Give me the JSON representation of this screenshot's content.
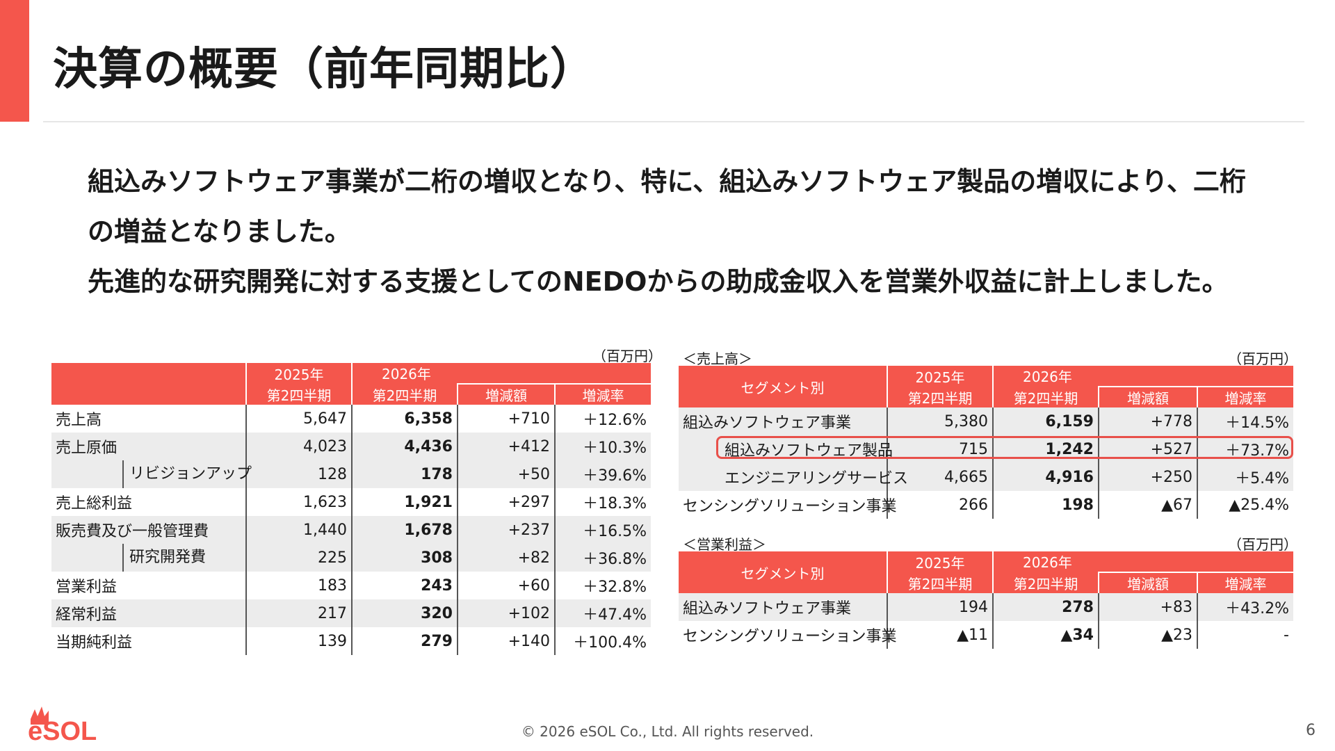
{
  "title": "決算の概要（前年同期比）",
  "summary": [
    "組込みソフトウェア事業が二桁の増収となり、特に、組込みソフトウェア製品の増収により、二桁",
    "の増益となりました。",
    "先進的な研究開発に対する支援としてのNEDOからの助成金収入を営業外収益に計上しました。"
  ],
  "unit_label": "（百万円）",
  "pl_table": {
    "headers": {
      "y2025": "2025年",
      "y2026": "2026年",
      "period": "第2四半期",
      "change": "増減額",
      "rate": "増減率"
    },
    "rows": [
      {
        "label": "売上高",
        "v2025": "5,647",
        "v2026": "6,358",
        "change": "+710",
        "rate": "＋12.6%"
      },
      {
        "label": "売上原価",
        "v2025": "4,023",
        "v2026": "4,436",
        "change": "+412",
        "rate": "＋10.3%"
      },
      {
        "label": "リビジョンアップ",
        "v2025": "128",
        "v2026": "178",
        "change": "+50",
        "rate": "＋39.6%"
      },
      {
        "label": "売上総利益",
        "v2025": "1,623",
        "v2026": "1,921",
        "change": "+297",
        "rate": "＋18.3%"
      },
      {
        "label": "販売費及び一般管理費",
        "v2025": "1,440",
        "v2026": "1,678",
        "change": "+237",
        "rate": "＋16.5%"
      },
      {
        "label": "研究開発費",
        "v2025": "225",
        "v2026": "308",
        "change": "+82",
        "rate": "＋36.8%"
      },
      {
        "label": "営業利益",
        "v2025": "183",
        "v2026": "243",
        "change": "+60",
        "rate": "＋32.8%"
      },
      {
        "label": "経常利益",
        "v2025": "217",
        "v2026": "320",
        "change": "+102",
        "rate": "＋47.4%"
      },
      {
        "label": "当期純利益",
        "v2025": "139",
        "v2026": "279",
        "change": "+140",
        "rate": "＋100.4%"
      }
    ]
  },
  "sales_table": {
    "section": "＜売上高＞",
    "segment_header": "セグメント別",
    "rows": [
      {
        "label": "組込みソフトウェア事業",
        "v2025": "5,380",
        "v2026": "6,159",
        "change": "+778",
        "rate": "＋14.5%"
      },
      {
        "label": "組込みソフトウェア製品",
        "v2025": "715",
        "v2026": "1,242",
        "change": "+527",
        "rate": "＋73.7%"
      },
      {
        "label": "エンジニアリングサービス",
        "v2025": "4,665",
        "v2026": "4,916",
        "change": "+250",
        "rate": "＋5.4%"
      },
      {
        "label": "センシングソリューション事業",
        "v2025": "266",
        "v2026": "198",
        "change": "▲67",
        "rate": "▲25.4%"
      }
    ]
  },
  "op_table": {
    "section": "＜営業利益＞",
    "segment_header": "セグメント別",
    "rows": [
      {
        "label": "組込みソフトウェア事業",
        "v2025": "194",
        "v2026": "278",
        "change": "+83",
        "rate": "＋43.2%"
      },
      {
        "label": "センシングソリューション事業",
        "v2025": "▲11",
        "v2026": "▲34",
        "change": "▲23",
        "rate": "-"
      }
    ]
  },
  "footer": {
    "copyright": "© 2026 eSOL Co., Ltd. All rights reserved.",
    "page_number": "6",
    "logo_text": "eSOL"
  },
  "colors": {
    "accent": "#f4564c",
    "row_alt": "#ececec",
    "highlight_border": "#e8504a"
  }
}
